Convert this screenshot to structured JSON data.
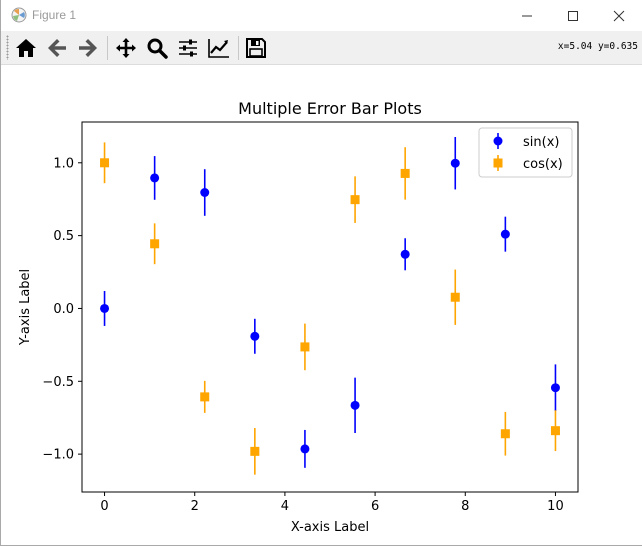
{
  "window": {
    "title": "Figure 1",
    "coords": "x=5.04 y=0.635"
  },
  "toolbar": {
    "buttons": [
      {
        "name": "home-icon"
      },
      {
        "name": "back-arrow-icon"
      },
      {
        "name": "forward-arrow-icon"
      },
      {
        "name": "pan-icon"
      },
      {
        "name": "zoom-icon"
      },
      {
        "name": "configure-subplots-icon"
      },
      {
        "name": "edit-axis-icon"
      },
      {
        "name": "save-icon"
      }
    ]
  },
  "chart_data": {
    "type": "scatter",
    "title": "Multiple Error Bar Plots",
    "xlabel": "X-axis Label",
    "ylabel": "Y-axis Label",
    "xlim": [
      -0.5,
      10.5
    ],
    "ylim": [
      -1.26,
      1.28
    ],
    "xticks": [
      0,
      2,
      4,
      6,
      8,
      10
    ],
    "xtick_labels": [
      "0",
      "2",
      "4",
      "6",
      "8",
      "10"
    ],
    "yticks": [
      -1.0,
      -0.5,
      0.0,
      0.5,
      1.0
    ],
    "ytick_labels": [
      "−1.0",
      "−0.5",
      "0.0",
      "0.5",
      "1.0"
    ],
    "grid": false,
    "legend": "top-right",
    "x": [
      0,
      1.111,
      2.222,
      3.333,
      4.444,
      5.556,
      6.667,
      7.778,
      8.889,
      10
    ],
    "series": [
      {
        "name": "sin(x)",
        "color": "#0000ff",
        "marker": "circle",
        "values": [
          0.0,
          0.896,
          0.796,
          -0.191,
          -0.964,
          -0.665,
          0.372,
          0.997,
          0.51,
          -0.544
        ],
        "errors": [
          0.12,
          0.15,
          0.16,
          0.12,
          0.13,
          0.19,
          0.11,
          0.18,
          0.12,
          0.16
        ]
      },
      {
        "name": "cos(x)",
        "color": "#ffa500",
        "marker": "square",
        "values": [
          1.0,
          0.444,
          -0.607,
          -0.981,
          -0.264,
          0.747,
          0.927,
          0.077,
          -0.86,
          -0.839
        ],
        "errors": [
          0.14,
          0.14,
          0.11,
          0.16,
          0.16,
          0.16,
          0.18,
          0.19,
          0.15,
          0.14
        ]
      }
    ]
  }
}
